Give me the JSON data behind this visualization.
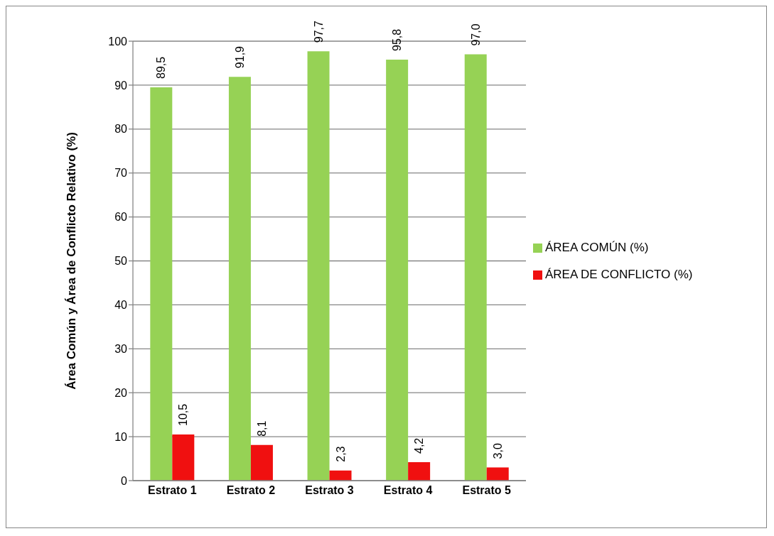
{
  "chart_data": {
    "type": "bar",
    "ylabel": "Área Común y Área de Conflicto Relativo (%)",
    "categories": [
      "Estrato 1",
      "Estrato 2",
      "Estrato 3",
      "Estrato 4",
      "Estrato 5"
    ],
    "series": [
      {
        "name": "ÁREA COMÚN (%)",
        "color": "#96d255",
        "values": [
          89.5,
          91.9,
          97.7,
          95.8,
          97.0
        ],
        "value_labels": [
          "89,5",
          "91,9",
          "97,7",
          "95,8",
          "97,0"
        ]
      },
      {
        "name": "ÁREA DE CONFLICTO (%)",
        "color": "#f01010",
        "values": [
          10.5,
          8.1,
          2.3,
          4.2,
          3.0
        ],
        "value_labels": [
          "10,5",
          "8,1",
          "2,3",
          "4,2",
          "3,0"
        ]
      }
    ],
    "ylim": [
      0,
      100
    ],
    "yticks": [
      0,
      10,
      20,
      30,
      40,
      50,
      60,
      70,
      80,
      90,
      100
    ],
    "grid": "y",
    "legend": "right"
  }
}
